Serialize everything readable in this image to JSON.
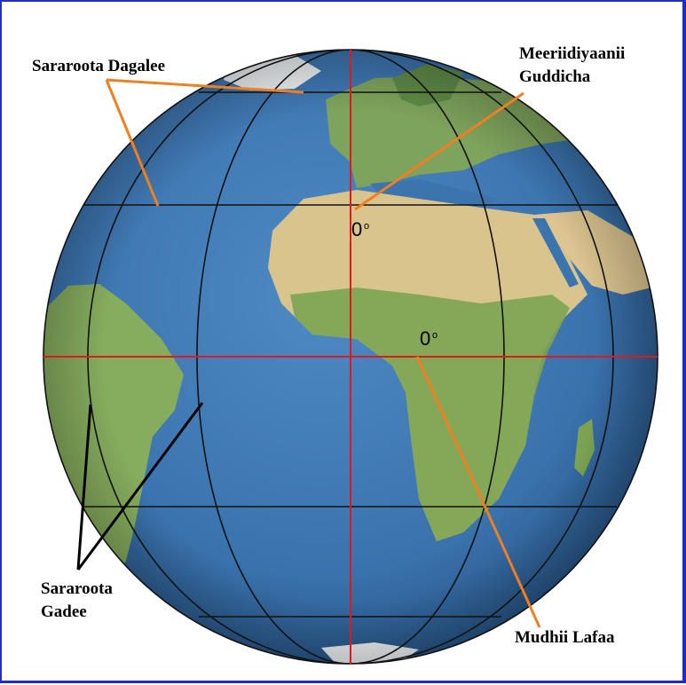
{
  "labels": {
    "latitudes": "Sararoota Dagalee",
    "prime_meridian": [
      "Meeriidiyaanii",
      "Guddicha"
    ],
    "longitudes": [
      "Sararoota",
      "Gadee"
    ],
    "equator": "Mudhii Lafaa",
    "degree_meridian": "0",
    "degree_equator": "0",
    "degree_symbol": "o"
  },
  "colors": {
    "frame": "#1b2fc4",
    "ocean": "#3f79b5",
    "land_green": "#6f9e52",
    "desert": "#e6d3a2",
    "grid_lines": "#111111",
    "zero_lines": "#e01a1a",
    "pointer_orange": "#f07f22",
    "pointer_black": "#000000"
  }
}
